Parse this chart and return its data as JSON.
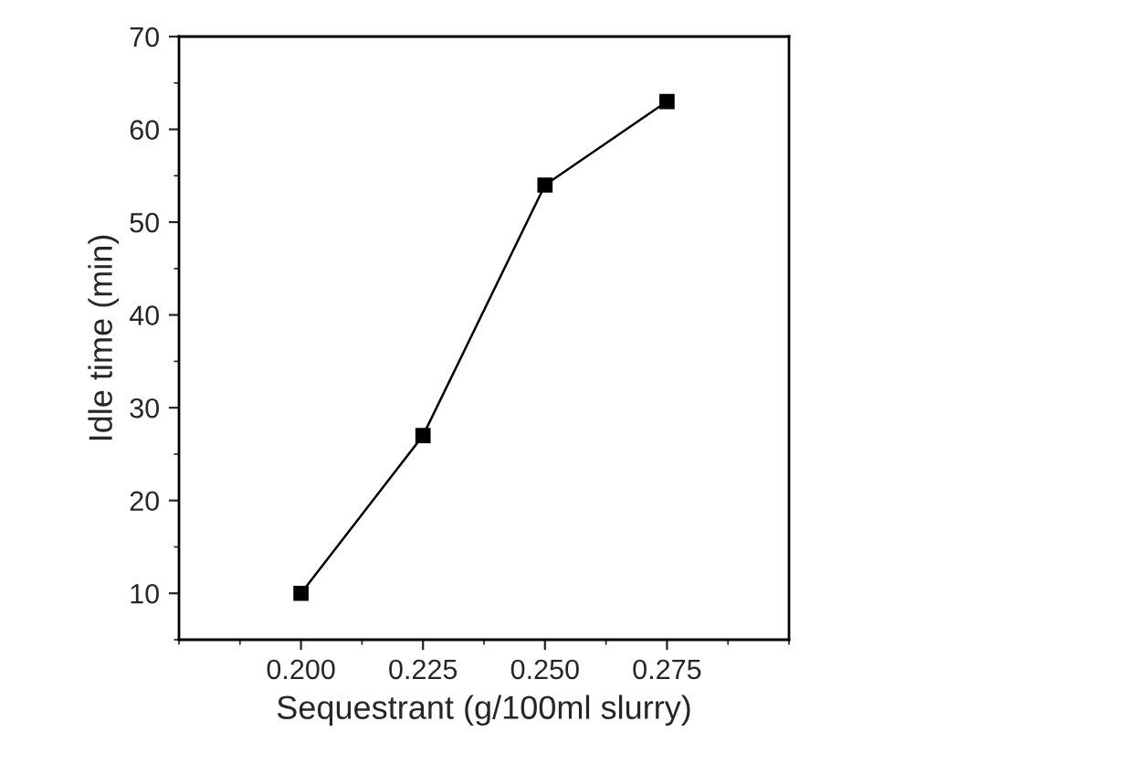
{
  "chart_data": {
    "type": "line",
    "xlabel": "Sequestrant (g/100ml slurry)",
    "ylabel": "Idle time (min)",
    "x": [
      0.2,
      0.225,
      0.25,
      0.275
    ],
    "series": [
      {
        "color": "#000000",
        "values": [
          10,
          27,
          54,
          63
        ]
      }
    ],
    "xlim": [
      0.175,
      0.3
    ],
    "ylim": [
      5,
      70
    ],
    "xticks": [
      {
        "value": 0.2,
        "label": "0.200"
      },
      {
        "value": 0.225,
        "label": "0.225"
      },
      {
        "value": 0.25,
        "label": "0.250"
      },
      {
        "value": 0.275,
        "label": "0.275"
      }
    ],
    "yticks": [
      10,
      20,
      30,
      40,
      50,
      60,
      70
    ],
    "marker": "square",
    "line_style": "solid",
    "grid": false,
    "legend": false
  }
}
